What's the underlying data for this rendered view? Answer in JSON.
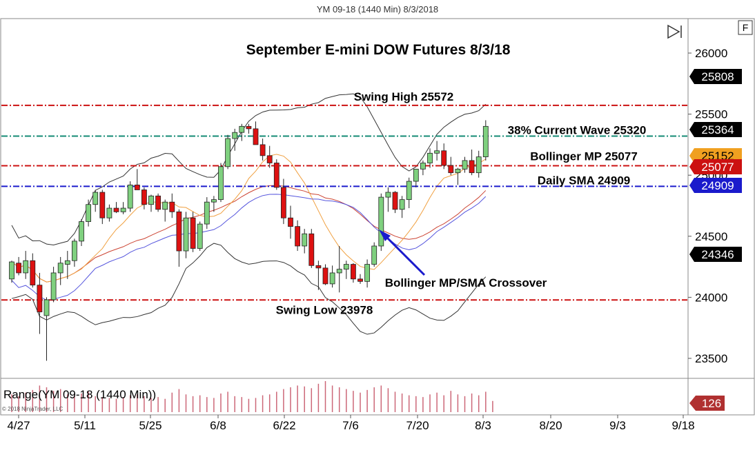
{
  "window": {
    "title": "YM 09-18 (1440 Min)  8/3/2018",
    "f_button": "F"
  },
  "copyright": "© 2018 NinjaTrader, LLC",
  "colors": {
    "up": "#7fd07f",
    "down": "#dd1111",
    "red_line": "#cc1111",
    "teal_line": "#138a74",
    "blue_line": "#1a1acc",
    "bb_outer": "#333333",
    "bb_middle": "#cc4433",
    "sma": "#f0a040",
    "mp": "#5555dd"
  },
  "chart_data": {
    "type": "candlestick",
    "title": "September E-mini DOW Futures 8/3/18",
    "y_ticks": [
      23500,
      24000,
      24500,
      25000,
      25500,
      26000
    ],
    "ylim": [
      23300,
      26200
    ],
    "x_tick_labels": [
      "4/27",
      "5/11",
      "5/25",
      "6/8",
      "6/22",
      "7/6",
      "7/20",
      "8/3",
      "8/20",
      "9/3",
      "9/18"
    ],
    "candles": [
      {
        "date": "4/27",
        "o": 24150,
        "h": 24300,
        "l": 24120,
        "c": 24290
      },
      {
        "date": "4/30",
        "o": 24280,
        "h": 24330,
        "l": 24180,
        "c": 24200
      },
      {
        "date": "5/1",
        "o": 24200,
        "h": 24380,
        "l": 24150,
        "c": 24300
      },
      {
        "date": "5/2",
        "o": 24300,
        "h": 24360,
        "l": 24080,
        "c": 24100
      },
      {
        "date": "5/3",
        "o": 24100,
        "h": 24200,
        "l": 23700,
        "c": 23880
      },
      {
        "date": "5/4",
        "o": 23850,
        "h": 24000,
        "l": 23480,
        "c": 23980
      },
      {
        "date": "5/7",
        "o": 23980,
        "h": 24250,
        "l": 23960,
        "c": 24200
      },
      {
        "date": "5/8",
        "o": 24200,
        "h": 24330,
        "l": 24100,
        "c": 24280
      },
      {
        "date": "5/9",
        "o": 24270,
        "h": 24380,
        "l": 24150,
        "c": 24300
      },
      {
        "date": "5/10",
        "o": 24300,
        "h": 24480,
        "l": 24250,
        "c": 24460
      },
      {
        "date": "5/11",
        "o": 24460,
        "h": 24640,
        "l": 24420,
        "c": 24620
      },
      {
        "date": "5/14",
        "o": 24620,
        "h": 24800,
        "l": 24580,
        "c": 24760
      },
      {
        "date": "5/15",
        "o": 24760,
        "h": 24880,
        "l": 24700,
        "c": 24860
      },
      {
        "date": "5/16",
        "o": 24860,
        "h": 24880,
        "l": 24600,
        "c": 24650
      },
      {
        "date": "5/17",
        "o": 24650,
        "h": 24760,
        "l": 24620,
        "c": 24730
      },
      {
        "date": "5/18",
        "o": 24730,
        "h": 24780,
        "l": 24690,
        "c": 24700
      },
      {
        "date": "5/21",
        "o": 24700,
        "h": 24780,
        "l": 24680,
        "c": 24730
      },
      {
        "date": "5/22",
        "o": 24730,
        "h": 24950,
        "l": 24700,
        "c": 24920
      },
      {
        "date": "5/23",
        "o": 24920,
        "h": 25050,
        "l": 24880,
        "c": 24880
      },
      {
        "date": "5/24",
        "o": 24880,
        "h": 24900,
        "l": 24720,
        "c": 24760
      },
      {
        "date": "5/25",
        "o": 24760,
        "h": 24840,
        "l": 24700,
        "c": 24830
      },
      {
        "date": "5/29",
        "o": 24830,
        "h": 24850,
        "l": 24700,
        "c": 24720
      },
      {
        "date": "5/30",
        "o": 24720,
        "h": 24800,
        "l": 24620,
        "c": 24780
      },
      {
        "date": "5/31",
        "o": 24780,
        "h": 24850,
        "l": 24650,
        "c": 24700
      },
      {
        "date": "6/1",
        "o": 24700,
        "h": 24720,
        "l": 24250,
        "c": 24380
      },
      {
        "date": "6/4",
        "o": 24380,
        "h": 24700,
        "l": 24320,
        "c": 24650
      },
      {
        "date": "6/5",
        "o": 24650,
        "h": 24700,
        "l": 24370,
        "c": 24400
      },
      {
        "date": "6/6",
        "o": 24400,
        "h": 24620,
        "l": 24380,
        "c": 24600
      },
      {
        "date": "6/7",
        "o": 24600,
        "h": 24820,
        "l": 24560,
        "c": 24780
      },
      {
        "date": "6/8",
        "o": 24780,
        "h": 24830,
        "l": 24700,
        "c": 24800
      },
      {
        "date": "6/11",
        "o": 24800,
        "h": 25100,
        "l": 24780,
        "c": 25070
      },
      {
        "date": "6/12",
        "o": 25070,
        "h": 25330,
        "l": 25050,
        "c": 25300
      },
      {
        "date": "6/13",
        "o": 25300,
        "h": 25380,
        "l": 25200,
        "c": 25350
      },
      {
        "date": "6/14",
        "o": 25350,
        "h": 25420,
        "l": 25280,
        "c": 25400
      },
      {
        "date": "6/15",
        "o": 25400,
        "h": 25420,
        "l": 25340,
        "c": 25380
      },
      {
        "date": "6/18",
        "o": 25380,
        "h": 25440,
        "l": 25250,
        "c": 25250
      },
      {
        "date": "6/19",
        "o": 25250,
        "h": 25300,
        "l": 25120,
        "c": 25160
      },
      {
        "date": "6/20",
        "o": 25160,
        "h": 25240,
        "l": 25060,
        "c": 25100
      },
      {
        "date": "6/21",
        "o": 25100,
        "h": 25130,
        "l": 24880,
        "c": 24900
      },
      {
        "date": "6/22",
        "o": 24900,
        "h": 24970,
        "l": 24600,
        "c": 24650
      },
      {
        "date": "6/25",
        "o": 24650,
        "h": 24750,
        "l": 24480,
        "c": 24580
      },
      {
        "date": "6/26",
        "o": 24580,
        "h": 24630,
        "l": 24380,
        "c": 24420
      },
      {
        "date": "6/27",
        "o": 24420,
        "h": 24560,
        "l": 24360,
        "c": 24520
      },
      {
        "date": "6/28",
        "o": 24520,
        "h": 24560,
        "l": 24240,
        "c": 24260
      },
      {
        "date": "6/29",
        "o": 24260,
        "h": 24300,
        "l": 24060,
        "c": 24240
      },
      {
        "date": "7/2",
        "o": 24240,
        "h": 24270,
        "l": 24100,
        "c": 24110
      },
      {
        "date": "7/3",
        "o": 24110,
        "h": 24260,
        "l": 24080,
        "c": 24200
      },
      {
        "date": "7/5",
        "o": 24200,
        "h": 24420,
        "l": 24040,
        "c": 24230
      },
      {
        "date": "7/6",
        "o": 24230,
        "h": 24300,
        "l": 24150,
        "c": 24270
      },
      {
        "date": "7/9",
        "o": 24270,
        "h": 24280,
        "l": 24120,
        "c": 24150
      },
      {
        "date": "7/10",
        "o": 24150,
        "h": 24190,
        "l": 24110,
        "c": 24130
      },
      {
        "date": "7/11",
        "o": 24130,
        "h": 24310,
        "l": 24080,
        "c": 24270
      },
      {
        "date": "7/12",
        "o": 24270,
        "h": 24450,
        "l": 24250,
        "c": 24420
      },
      {
        "date": "7/13",
        "o": 24420,
        "h": 24850,
        "l": 24380,
        "c": 24820
      },
      {
        "date": "7/16",
        "o": 24820,
        "h": 24900,
        "l": 24700,
        "c": 24860
      },
      {
        "date": "7/17",
        "o": 24860,
        "h": 24870,
        "l": 24690,
        "c": 24720
      },
      {
        "date": "7/18",
        "o": 24720,
        "h": 24830,
        "l": 24650,
        "c": 24800
      },
      {
        "date": "7/19",
        "o": 24800,
        "h": 24980,
        "l": 24730,
        "c": 24950
      },
      {
        "date": "7/20",
        "o": 24950,
        "h": 25050,
        "l": 24900,
        "c": 25050
      },
      {
        "date": "7/23",
        "o": 25050,
        "h": 25120,
        "l": 25000,
        "c": 25100
      },
      {
        "date": "7/24",
        "o": 25100,
        "h": 25220,
        "l": 25060,
        "c": 25180
      },
      {
        "date": "7/25",
        "o": 25180,
        "h": 25280,
        "l": 25120,
        "c": 25200
      },
      {
        "date": "7/26",
        "o": 25200,
        "h": 25260,
        "l": 25050,
        "c": 25080
      },
      {
        "date": "7/27",
        "o": 25080,
        "h": 25150,
        "l": 25000,
        "c": 25020
      },
      {
        "date": "7/30",
        "o": 25020,
        "h": 25060,
        "l": 24920,
        "c": 25050
      },
      {
        "date": "7/31",
        "o": 25050,
        "h": 25150,
        "l": 25020,
        "c": 25120
      },
      {
        "date": "8/1",
        "o": 25120,
        "h": 25210,
        "l": 25000,
        "c": 25020
      },
      {
        "date": "8/2",
        "o": 25020,
        "h": 25200,
        "l": 24980,
        "c": 25150
      },
      {
        "date": "8/3",
        "o": 25150,
        "h": 25450,
        "l": 25120,
        "c": 25400
      }
    ],
    "horizontal_levels": [
      {
        "price": 25572,
        "label": "Swing High 25572",
        "color": "#cc1111"
      },
      {
        "price": 25320,
        "label": "38% Current Wave 25320",
        "color": "#138a74"
      },
      {
        "price": 25077,
        "label": "Bollinger MP 25077",
        "color": "#cc1111"
      },
      {
        "price": 24909,
        "label": "Daily SMA 24909",
        "color": "#1a1acc"
      },
      {
        "price": 23978,
        "label": "Swing Low 23978",
        "color": "#cc1111"
      }
    ],
    "annotations": [
      {
        "label": "Bollinger MP/SMA Crossover"
      }
    ],
    "price_markers": [
      {
        "value": "25808",
        "price": 25808,
        "bg": "#000000",
        "fg": "#ffffff"
      },
      {
        "value": "25364",
        "price": 25364,
        "bg": "#000000",
        "fg": "#ffffff"
      },
      {
        "value": "25152",
        "price": 25152,
        "bg": "#f0a020",
        "fg": "#000000"
      },
      {
        "value": "25077",
        "price": 25077,
        "bg": "#cc1111",
        "fg": "#ffffff"
      },
      {
        "value": "24909",
        "price": 24909,
        "bg": "#1a1acc",
        "fg": "#ffffff"
      },
      {
        "value": "24346",
        "price": 24346,
        "bg": "#000000",
        "fg": "#ffffff"
      }
    ],
    "volume_panel": {
      "label": "Range(YM 09-18 (1440 Min))",
      "marker": "126",
      "values": [
        200,
        180,
        220,
        250,
        300,
        280,
        240,
        260,
        200,
        190,
        210,
        230,
        180,
        170,
        160,
        150,
        170,
        190,
        200,
        180,
        160,
        170,
        150,
        220,
        260,
        200,
        180,
        190,
        170,
        160,
        210,
        230,
        180,
        170,
        150,
        160,
        190,
        200,
        230,
        260,
        280,
        300,
        290,
        270,
        320,
        350,
        300,
        280,
        260,
        240,
        220,
        250,
        280,
        300,
        270,
        230,
        210,
        190,
        180,
        170,
        200,
        220,
        190,
        240,
        200,
        180,
        210,
        190,
        230,
        126
      ]
    }
  }
}
